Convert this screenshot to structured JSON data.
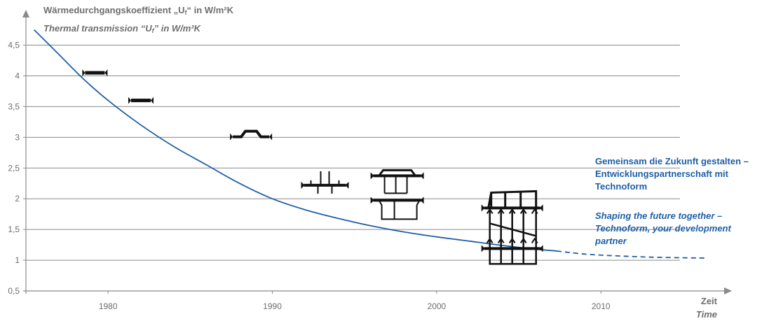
{
  "chart_data": {
    "type": "line",
    "y_title_de": "Wärmedurchgangskoeffizient „U",
    "y_title_de_sub": "f",
    "y_title_de_end": "“ in W/m²K",
    "y_title_en": "Thermal transmission “U",
    "y_title_en_sub": "f",
    "y_title_en_end": "” in W/m²K",
    "x_title_de": "Zeit",
    "x_title_en": "Time",
    "y_ticks": [
      {
        "value": 0.5,
        "label": "0,5"
      },
      {
        "value": 1,
        "label": "1"
      },
      {
        "value": 1.5,
        "label": "1,5"
      },
      {
        "value": 2,
        "label": "2"
      },
      {
        "value": 2.5,
        "label": "2,5"
      },
      {
        "value": 3,
        "label": "3"
      },
      {
        "value": 3.5,
        "label": "3,5"
      },
      {
        "value": 4,
        "label": "4"
      },
      {
        "value": 4.5,
        "label": "4,5"
      }
    ],
    "x_ticks": [
      {
        "value": 1980,
        "label": "1980"
      },
      {
        "value": 1990,
        "label": "1990"
      },
      {
        "value": 2000,
        "label": "2000"
      },
      {
        "value": 2010,
        "label": "2010"
      }
    ],
    "xlim": [
      1975,
      2017.5
    ],
    "ylim": [
      0.5,
      4.95
    ],
    "grid": true,
    "series": [
      {
        "style": "solid",
        "color": "#1f5fa6",
        "x": [
          1975.5,
          1977,
          1978.5,
          1980,
          1982,
          1984,
          1986,
          1988,
          1990,
          1992,
          1994,
          1996,
          1998,
          2000,
          2002,
          2004,
          2006,
          2007.3
        ],
        "y": [
          4.75,
          4.35,
          3.95,
          3.6,
          3.2,
          2.85,
          2.55,
          2.25,
          2.0,
          1.82,
          1.68,
          1.56,
          1.46,
          1.38,
          1.31,
          1.24,
          1.18,
          1.15
        ]
      },
      {
        "style": "dashed",
        "color": "#1f5fa6",
        "x": [
          2007.3,
          2009,
          2011,
          2013,
          2015,
          2016.5
        ],
        "y": [
          1.15,
          1.1,
          1.07,
          1.05,
          1.04,
          1.035
        ]
      }
    ],
    "profiles": [
      {
        "name": "flat-bar-profile",
        "x": 1979.2,
        "y": 4.05
      },
      {
        "name": "flat-bar-profile",
        "x": 1982,
        "y": 3.6
      },
      {
        "name": "omega-profile",
        "x": 1988.7,
        "y": 3.02
      },
      {
        "name": "t-profile",
        "x": 1993.2,
        "y": 2.22
      },
      {
        "name": "box-profile",
        "x": 1997.6,
        "y": 2.35
      },
      {
        "name": "multi-chamber-profile",
        "x": 2004.6,
        "y": 1.85
      }
    ]
  },
  "note": {
    "de": "Gemeinsam die Zukunft gestalten – Entwicklungspartnerschaft mit Technoform",
    "en": "Shaping the future together – Technoform, your development partner"
  }
}
